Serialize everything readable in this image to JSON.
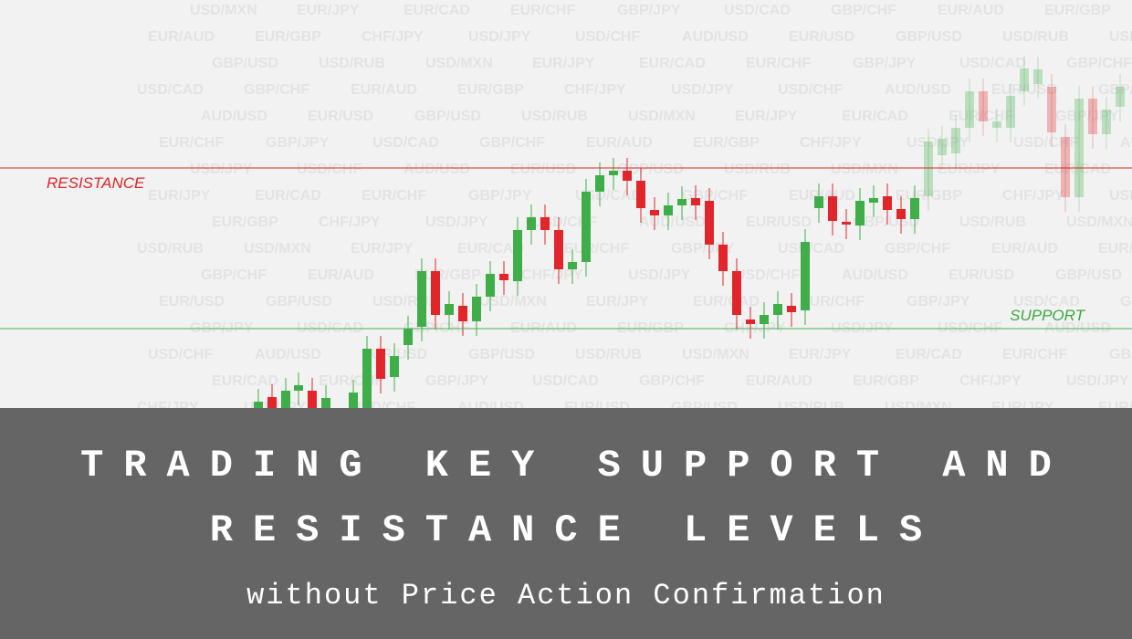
{
  "chart_label_resistance": "RESISTANCE",
  "chart_label_support": "SUPPORT",
  "watermark": [
    "USD/MXN",
    "EUR/USD",
    "USD/JPY",
    "EUR/AUD",
    "GBP/JPY",
    "EUR/JPY",
    "GBP/USD",
    "USD/CHF",
    "EUR/GBP",
    "USD/CAD",
    "EUR/CAD",
    "USD/RUB",
    "AUD/USD",
    "CHF/JPY",
    "GBP/CHF",
    "EUR/CHF"
  ],
  "banner": {
    "title_line_1": "TRADING KEY SUPPORT AND",
    "title_line_2": "RESISTANCE LEVELS",
    "subtitle": "without Price Action Confirmation"
  }
}
